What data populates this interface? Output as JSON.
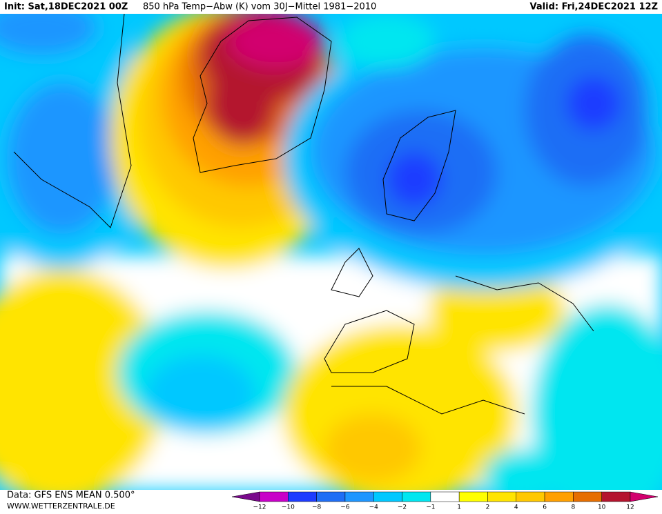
{
  "header": {
    "init": "Init: Sat,18DEC2021 00Z",
    "title": "850 hPa Temp−Abw (K) vom 30J−Mittel 1981−2010",
    "valid": "Valid: Fri,24DEC2021 12Z"
  },
  "footer": {
    "source": "Data: GFS ENS MEAN 0.500°",
    "site": "WWW.WETTERZENTRALE.DE"
  },
  "legend": {
    "labels": [
      "−12",
      "−10",
      "−8",
      "−6",
      "−4",
      "−2",
      "−1",
      "1",
      "2",
      "4",
      "6",
      "8",
      "10",
      "12"
    ],
    "colors": [
      "#7a0a8c",
      "#c800c8",
      "#1e3cff",
      "#1f6ef5",
      "#1e96ff",
      "#00c8ff",
      "#00e6f0",
      "#ffffff",
      "#ffff00",
      "#ffe400",
      "#ffc800",
      "#ffa000",
      "#e66e00",
      "#b4142d",
      "#d2006e"
    ]
  }
}
